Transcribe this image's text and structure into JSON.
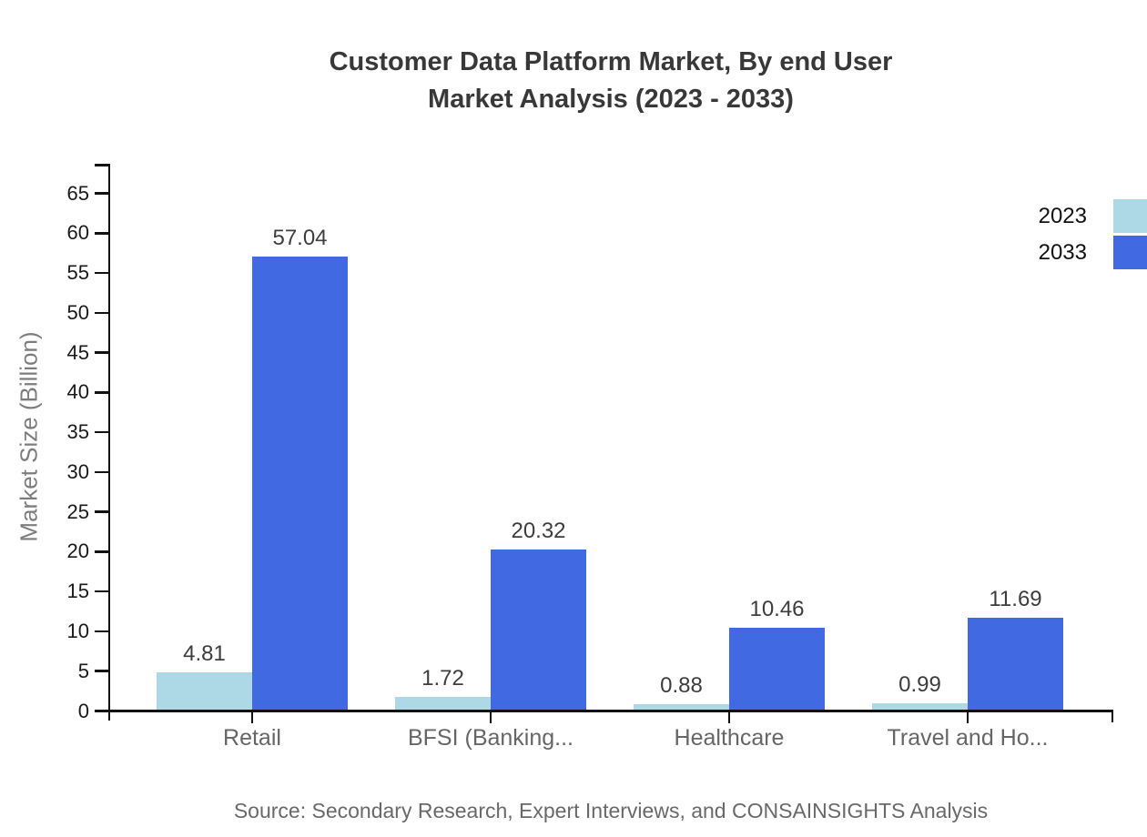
{
  "title": {
    "line1": "Customer Data Platform Market, By end User",
    "line2": "Market Analysis (2023 - 2033)"
  },
  "source": "Source: Secondary Research, Expert Interviews, and CONSAINSIGHTS Analysis",
  "chart_data": {
    "type": "bar",
    "categories": [
      "Retail",
      "BFSI (Banking...",
      "Healthcare",
      "Travel and Ho..."
    ],
    "series": [
      {
        "name": "2023",
        "color": "#ADD8E6",
        "values": [
          4.81,
          1.72,
          0.88,
          0.99
        ]
      },
      {
        "name": "2033",
        "color": "#4169E1",
        "values": [
          57.04,
          20.32,
          10.46,
          11.69
        ]
      }
    ],
    "value_labels": [
      "4.81",
      "57.04",
      "1.72",
      "20.32",
      "0.88",
      "10.46",
      "0.99",
      "11.69"
    ],
    "xlabel": "",
    "ylabel": "Market Size (Billion)",
    "ylim": [
      0,
      65
    ],
    "yticks": [
      0,
      5,
      10,
      15,
      20,
      25,
      30,
      35,
      40,
      45,
      50,
      55,
      60,
      65
    ],
    "grid": false,
    "legend_position": "top-right"
  },
  "colors": {
    "axis": "#111111",
    "title_text": "#383838",
    "value_label_text": "#3d3d3d",
    "y_tick_label_text": "#1a1a1a",
    "category_label_text": "#666666",
    "axis_title_text": "#7d7d7d",
    "source_text": "#696969",
    "legend_text": "#111111",
    "background": "#ffffff"
  }
}
